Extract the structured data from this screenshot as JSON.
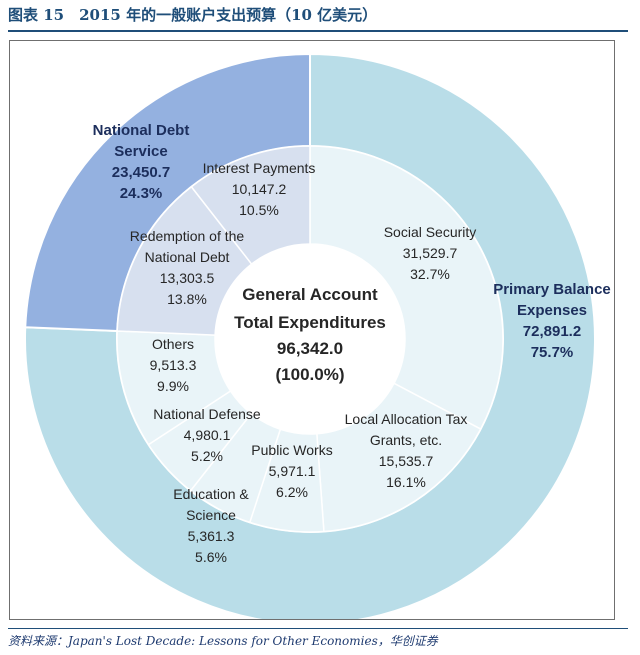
{
  "figure_title": "图表 15　2015 年的一般账户支出预算（10 亿美元）",
  "source": "资料来源：Japan's Lost Decade: Lessons for Other Economies，华创证券",
  "colors": {
    "title": "#1f4e79",
    "outer_primary": "#b9dde8",
    "outer_debt": "#94b1e0",
    "inner_primary": "#e9f4f8",
    "inner_debt": "#d7e0ef",
    "stroke": "#ffffff",
    "text": "#262626",
    "outer_text": "#1c2e5c"
  },
  "chart_data": {
    "type": "pie",
    "subtype": "two-level donut",
    "title": "2015 年的一般账户支出预算（10 亿美元）",
    "unit": "10 亿美元",
    "center": {
      "line1": "General Account",
      "line2": "Total Expenditures",
      "value": "96,342.0",
      "percent": "(100.0%)"
    },
    "outer_ring": [
      {
        "name": "Primary Balance Expenses",
        "value": 72891.2,
        "value_label": "72,891.2",
        "percent": 75.7,
        "percent_label": "75.7%"
      },
      {
        "name": "National Debt Service",
        "value": 23450.7,
        "value_label": "23,450.7",
        "percent": 24.3,
        "percent_label": "24.3%"
      }
    ],
    "inner_ring": [
      {
        "name": "Social Security",
        "group": "Primary Balance Expenses",
        "value": 31529.7,
        "value_label": "31,529.7",
        "percent": 32.7,
        "percent_label": "32.7%"
      },
      {
        "name": "Local Allocation Tax Grants, etc.",
        "group": "Primary Balance Expenses",
        "value": 15535.7,
        "value_label": "15,535.7",
        "percent": 16.1,
        "percent_label": "16.1%"
      },
      {
        "name": "Public Works",
        "group": "Primary Balance Expenses",
        "value": 5971.1,
        "value_label": "5,971.1",
        "percent": 6.2,
        "percent_label": "6.2%"
      },
      {
        "name": "Education & Science",
        "group": "Primary Balance Expenses",
        "value": 5361.3,
        "value_label": "5,361.3",
        "percent": 5.6,
        "percent_label": "5.6%"
      },
      {
        "name": "National Defense",
        "group": "Primary Balance Expenses",
        "value": 4980.1,
        "value_label": "4,980.1",
        "percent": 5.2,
        "percent_label": "5.2%"
      },
      {
        "name": "Others",
        "group": "Primary Balance Expenses",
        "value": 9513.3,
        "value_label": "9,513.3",
        "percent": 9.9,
        "percent_label": "9.9%"
      },
      {
        "name": "Redemption of the National Debt",
        "group": "National Debt Service",
        "value": 13303.5,
        "value_label": "13,303.5",
        "percent": 13.8,
        "percent_label": "13.8%"
      },
      {
        "name": "Interest Payments",
        "group": "National Debt Service",
        "value": 10147.2,
        "value_label": "10,147.2",
        "percent": 10.5,
        "percent_label": "10.5%"
      }
    ]
  }
}
